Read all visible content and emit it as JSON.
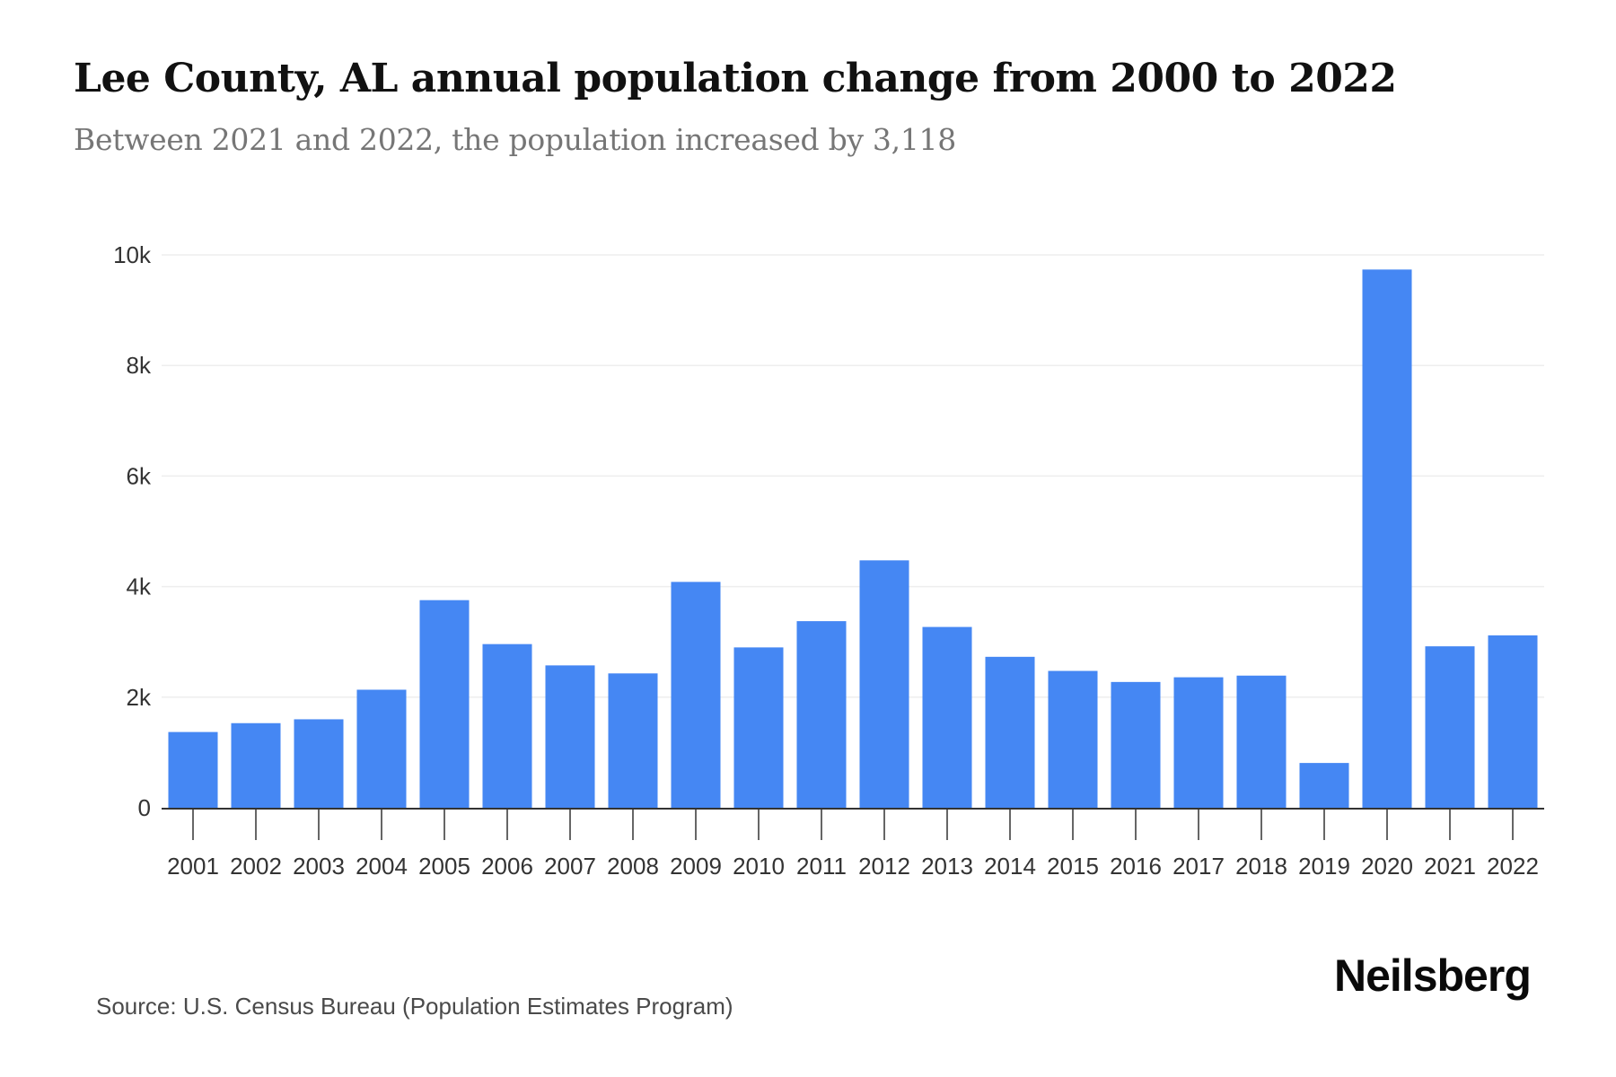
{
  "header": {
    "title": "Lee County, AL annual population change from 2000 to 2022",
    "subtitle": "Between 2021 and 2022, the population increased by 3,118"
  },
  "footer": {
    "source": "Source: U.S. Census Bureau (Population Estimates Program)",
    "logo": "Neilsberg"
  },
  "colors": {
    "bar": "#4587f3",
    "grid": "#eeeeee",
    "axis": "#333333"
  },
  "chart_data": {
    "type": "bar",
    "title": "Lee County, AL annual population change from 2000 to 2022",
    "subtitle": "Between 2021 and 2022, the population increased by 3,118",
    "xlabel": "",
    "ylabel": "",
    "categories": [
      "2001",
      "2002",
      "2003",
      "2004",
      "2005",
      "2006",
      "2007",
      "2008",
      "2009",
      "2010",
      "2011",
      "2012",
      "2013",
      "2014",
      "2015",
      "2016",
      "2017",
      "2018",
      "2019",
      "2020",
      "2021",
      "2022"
    ],
    "values": [
      1370,
      1530,
      1600,
      2135,
      3755,
      2960,
      2575,
      2430,
      4085,
      2900,
      3375,
      4475,
      3270,
      2730,
      2475,
      2275,
      2360,
      2390,
      810,
      9735,
      2920,
      3118
    ],
    "ylim": [
      0,
      10000
    ],
    "yticks": [
      0,
      2000,
      4000,
      6000,
      8000,
      10000
    ],
    "ytick_labels": [
      "0",
      "2k",
      "4k",
      "6k",
      "8k",
      "10k"
    ],
    "grid": true,
    "legend": "none"
  }
}
